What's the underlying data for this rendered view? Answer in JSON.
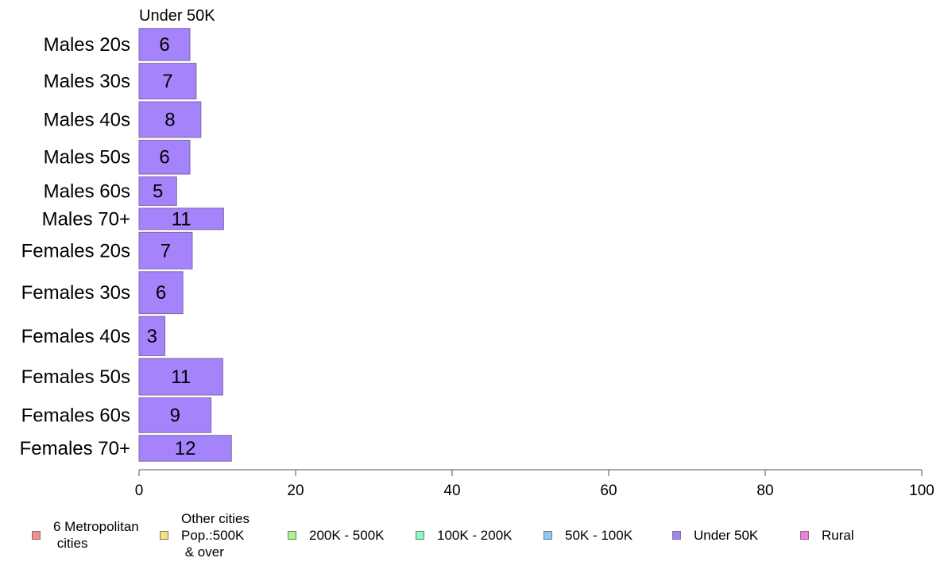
{
  "chart_data": {
    "type": "bar",
    "orientation": "horizontal",
    "panel_title": "Under 50K",
    "categories": [
      "Males 20s",
      "Males 30s",
      "Males 40s",
      "Males 50s",
      "Males 60s",
      "Males 70+",
      "Females 20s",
      "Females 30s",
      "Females 40s",
      "Females 50s",
      "Females 60s",
      "Females 70+"
    ],
    "series": [
      {
        "name": "Under 50K",
        "color": "#a583fb",
        "values": [
          6,
          7,
          8,
          6,
          5,
          11,
          7,
          6,
          3,
          11,
          9,
          12
        ]
      }
    ],
    "xlim": [
      0,
      100
    ],
    "xticks": [
      "0",
      "20",
      "40",
      "60",
      "80",
      "100"
    ],
    "bar_label_values": [
      6.5,
      7.3,
      7.9,
      6.5,
      4.8,
      10.8,
      6.8,
      5.6,
      3.3,
      10.7,
      9.2,
      11.8
    ],
    "band_weights": [
      39,
      43,
      43,
      41,
      35,
      27,
      44,
      50,
      47,
      44,
      42,
      32
    ],
    "grid": false,
    "legend_position": "bottom",
    "legend": [
      {
        "label": "6 Metropolitan\n cities",
        "color": "#f58a88"
      },
      {
        "label": "Other cities\nPop.:500K\n & over",
        "color": "#f8e27a"
      },
      {
        "label": "200K - 500K",
        "color": "#a8f58a"
      },
      {
        "label": "100K - 200K",
        "color": "#8af8c4"
      },
      {
        "label": "50K - 100K",
        "color": "#8ac8f5"
      },
      {
        "label": "Under 50K",
        "color": "#a583fb"
      },
      {
        "label": "Rural",
        "color": "#f87ae0"
      }
    ]
  }
}
